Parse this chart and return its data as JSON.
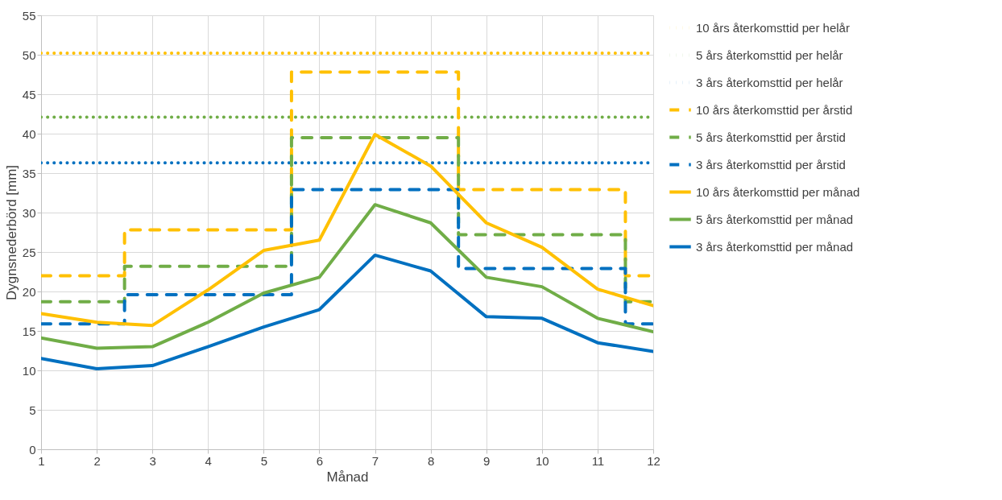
{
  "chart_data": {
    "type": "line",
    "xlabel": "Månad",
    "ylabel": "Dygnsnederbörd [mm]",
    "xlim": [
      1,
      12
    ],
    "xticks": [
      1,
      2,
      3,
      4,
      5,
      6,
      7,
      8,
      9,
      10,
      11,
      12
    ],
    "ylim": [
      0,
      55
    ],
    "yticks": [
      0,
      5,
      10,
      15,
      20,
      25,
      30,
      35,
      40,
      45,
      50,
      55
    ],
    "grid": true,
    "legend": "right",
    "marker": "none",
    "x": [
      1,
      2,
      3,
      4,
      5,
      6,
      7,
      8,
      9,
      10,
      11,
      12
    ],
    "series": [
      {
        "name": "10 års återkomsttid per helår",
        "color": "#ffc000",
        "line_style": "dotted",
        "x": [
          1,
          12
        ],
        "values": [
          50.2,
          50.2
        ]
      },
      {
        "name": "5 års återkomsttid per helår",
        "color": "#70ad47",
        "line_style": "dotted",
        "x": [
          1,
          12
        ],
        "values": [
          42.1,
          42.1
        ]
      },
      {
        "name": "3 års återkomsttid per helår",
        "color": "#0070c0",
        "line_style": "dotted",
        "x": [
          1,
          12
        ],
        "values": [
          36.3,
          36.3
        ]
      },
      {
        "name": "10 års återkomsttid per årstid",
        "color": "#ffc000",
        "line_style": "dashed",
        "x": [
          1,
          2.5,
          2.5,
          5.5,
          5.5,
          8.5,
          8.5,
          11.5,
          11.5,
          12
        ],
        "values": [
          22,
          22,
          27.8,
          27.8,
          47.8,
          47.8,
          32.9,
          32.9,
          22,
          22
        ]
      },
      {
        "name": "5 års återkomsttid per årstid",
        "color": "#70ad47",
        "line_style": "dashed",
        "x": [
          1,
          2.5,
          2.5,
          5.5,
          5.5,
          8.5,
          8.5,
          11.5,
          11.5,
          12
        ],
        "values": [
          18.7,
          18.7,
          23.2,
          23.2,
          39.5,
          39.5,
          27.2,
          27.2,
          18.7,
          18.7
        ]
      },
      {
        "name": "3 års återkomsttid per årstid",
        "color": "#0070c0",
        "line_style": "dashed",
        "x": [
          1,
          2.5,
          2.5,
          5.5,
          5.5,
          8.5,
          8.5,
          11.5,
          11.5,
          12
        ],
        "values": [
          15.9,
          15.9,
          19.6,
          19.6,
          32.9,
          32.9,
          22.9,
          22.9,
          15.9,
          15.9
        ]
      },
      {
        "name": "10  års återkomsttid per månad",
        "color": "#ffc000",
        "line_style": "solid",
        "values": [
          17.2,
          16.1,
          15.7,
          20.2,
          25.2,
          26.5,
          39.9,
          35.9,
          28.7,
          25.6,
          20.3,
          18.2
        ]
      },
      {
        "name": "5 års återkomsttid per månad",
        "color": "#70ad47",
        "line_style": "solid",
        "values": [
          14.1,
          12.8,
          13.0,
          16.1,
          19.8,
          21.8,
          31.0,
          28.7,
          21.8,
          20.6,
          16.6,
          14.9
        ]
      },
      {
        "name": "3 års återkomsttid per månad",
        "color": "#0070c0",
        "line_style": "solid",
        "values": [
          11.5,
          10.2,
          10.6,
          13.0,
          15.5,
          17.7,
          24.6,
          22.6,
          16.8,
          16.6,
          13.5,
          12.4
        ]
      }
    ]
  }
}
